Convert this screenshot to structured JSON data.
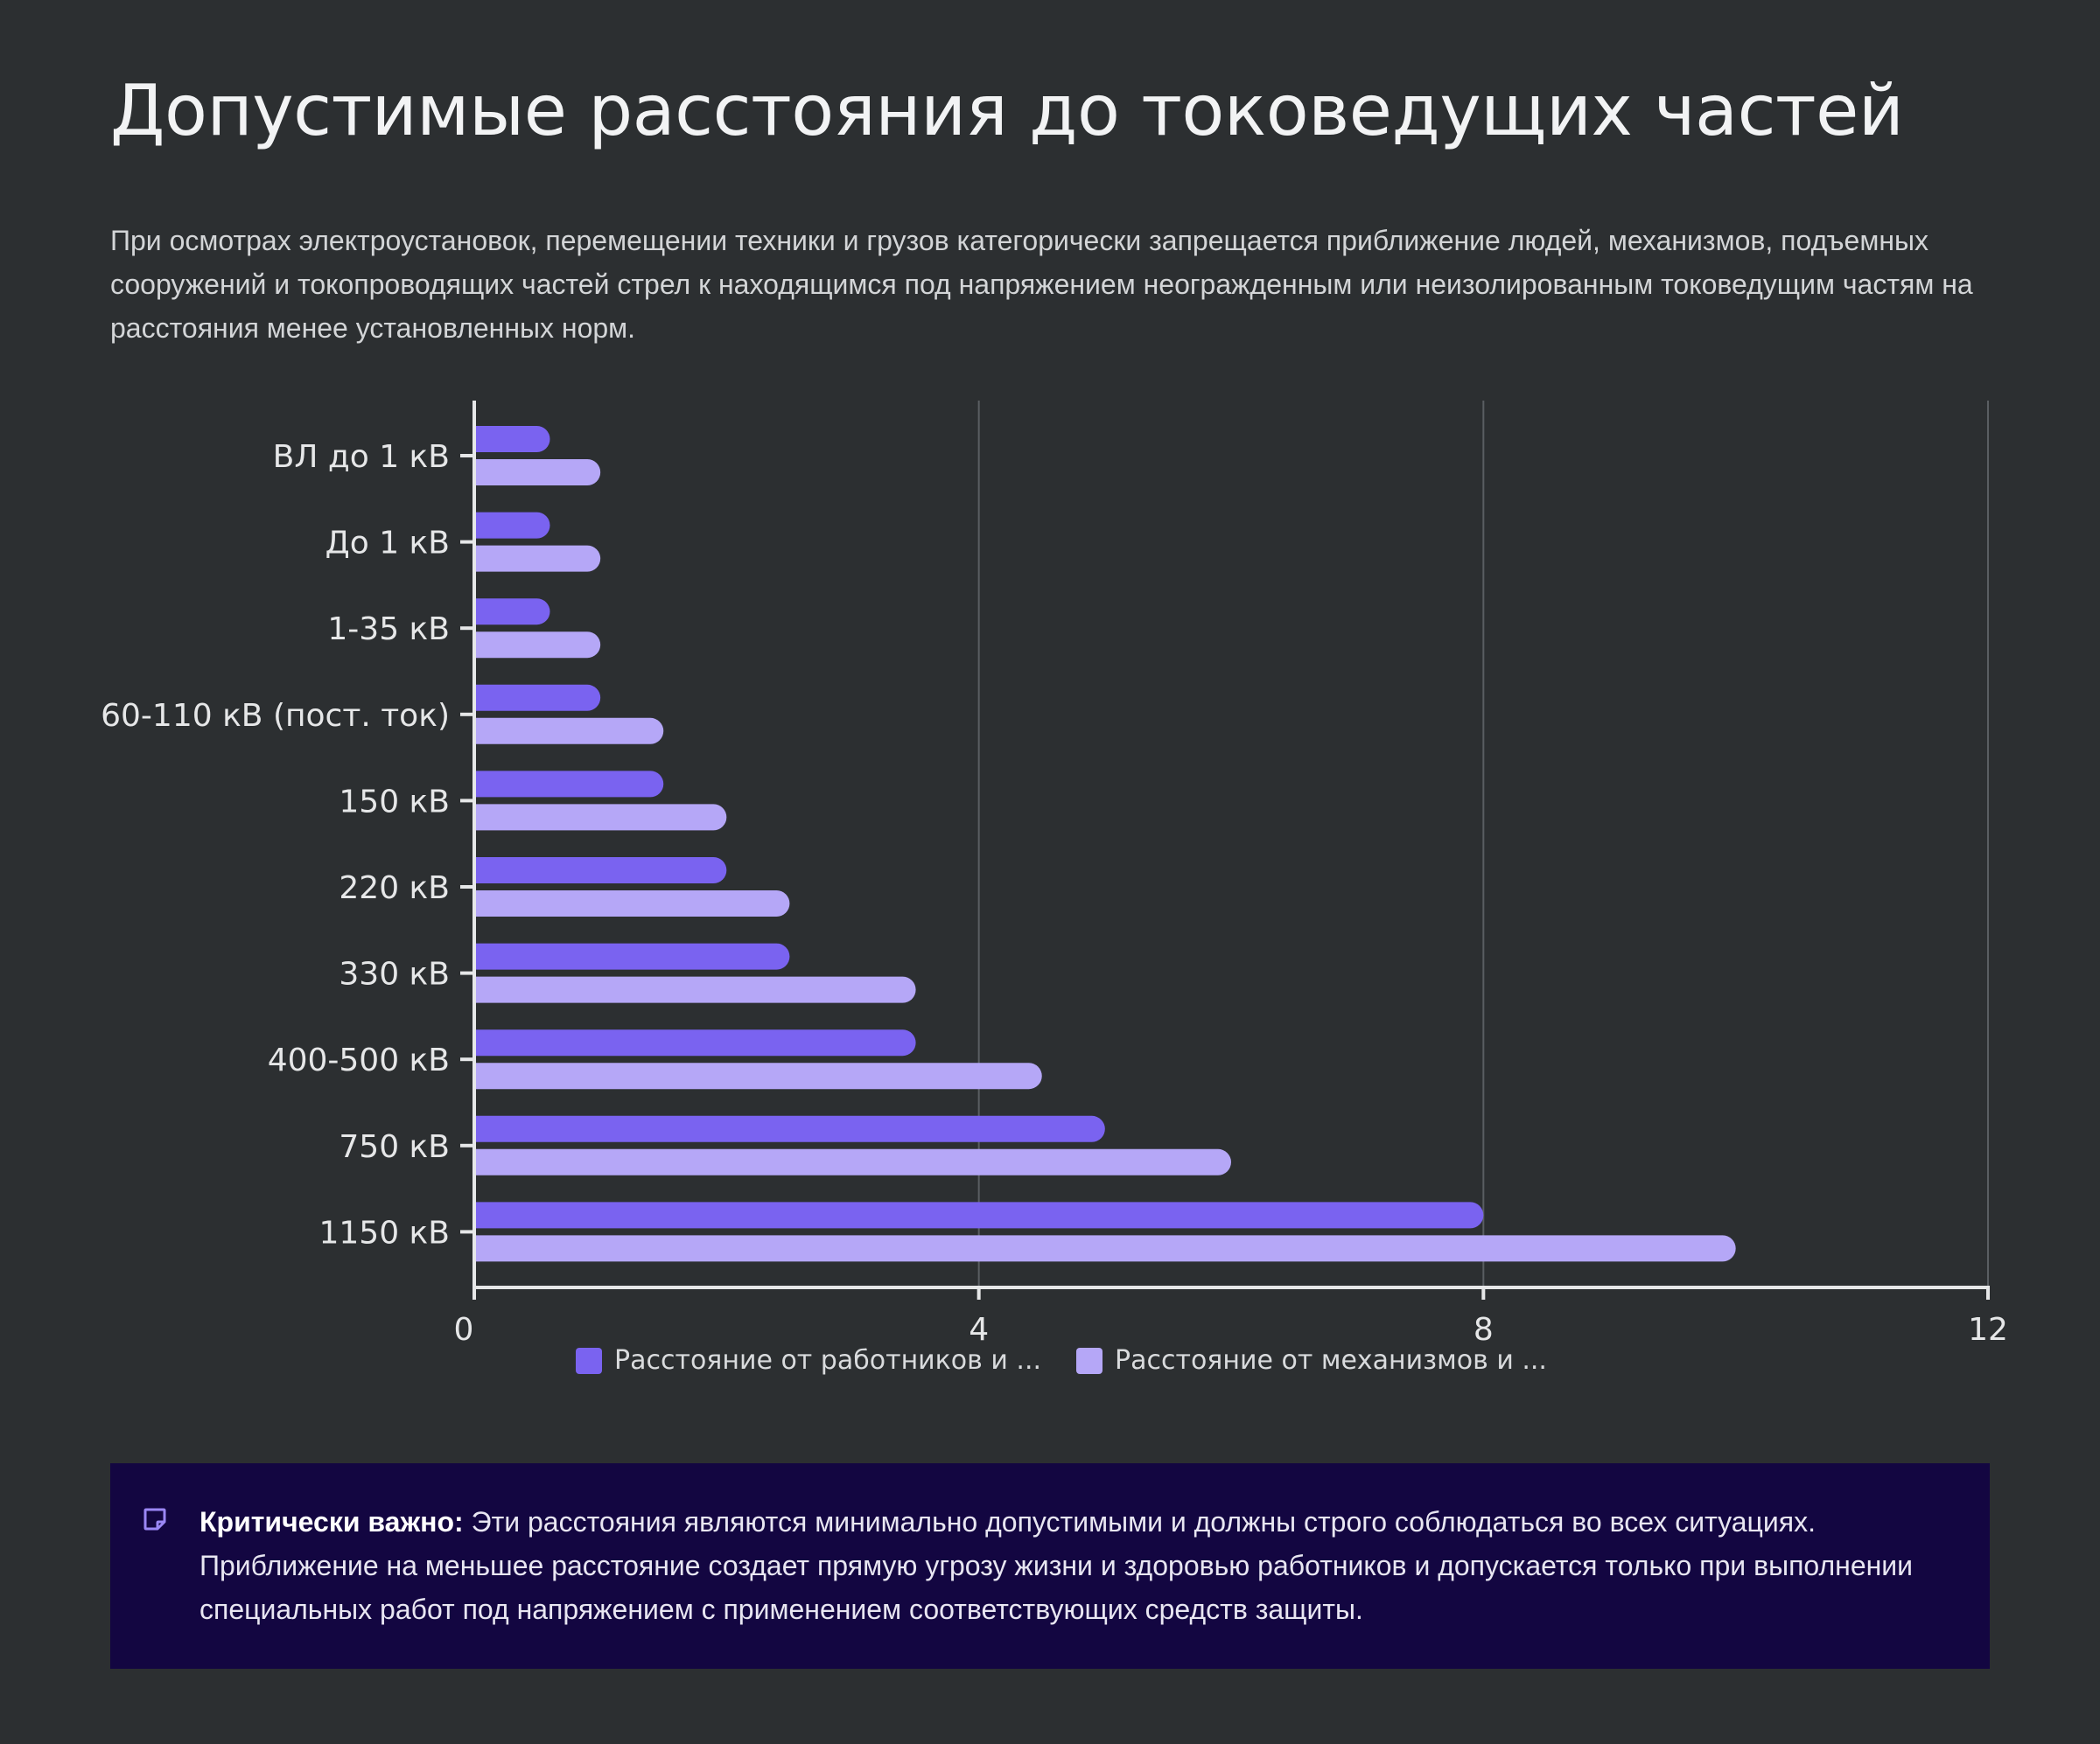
{
  "title": "Допустимые расстояния до токоведущих частей",
  "intro": "При осмотрах электроустановок, перемещении техники и грузов категорически запрещается приближение людей, механизмов, подъемных сооружений и токопроводящих частей стрел к находящимся под напряжением неогражденным или неизолированным токоведущим частям на расстояния менее установленных норм.",
  "colors": {
    "series1": "#7a63f0",
    "series2": "#b5a7f7",
    "background": "#2c2f31",
    "callout_bg": "#130641",
    "icon": "#9b87f5"
  },
  "chart_data": {
    "type": "bar",
    "orientation": "horizontal",
    "title": "",
    "xlabel": "",
    "ylabel": "",
    "xlim": [
      0,
      12
    ],
    "x_ticks": [
      "0",
      "4",
      "8",
      "12"
    ],
    "grid": true,
    "legend_position": "bottom",
    "categories": [
      "ВЛ до 1 кВ",
      "До 1 кВ",
      "1-35 кВ",
      "60-110 кВ (пост. ток)",
      "150 кВ",
      "220 кВ",
      "330 кВ",
      "400-500 кВ",
      "750 кВ",
      "1150 кВ"
    ],
    "series": [
      {
        "name": "Расстояние от работников и ...",
        "values": [
          0.6,
          0.6,
          0.6,
          1.0,
          1.5,
          2.0,
          2.5,
          3.5,
          5.0,
          8.0
        ]
      },
      {
        "name": "Расстояние от механизмов и ...",
        "values": [
          1.0,
          1.0,
          1.0,
          1.5,
          2.0,
          2.5,
          3.5,
          4.5,
          6.0,
          10.0
        ]
      }
    ]
  },
  "callout": {
    "icon": "note-icon",
    "label": "Критически важно:",
    "text": " Эти расстояния являются минимально допустимыми и должны строго соблюдаться во всех ситуациях. Приближение на меньшее расстояние создает прямую угрозу жизни и здоровью работников и допускается только при выполнении специальных работ под напряжением с применением соответствующих средств защиты."
  }
}
